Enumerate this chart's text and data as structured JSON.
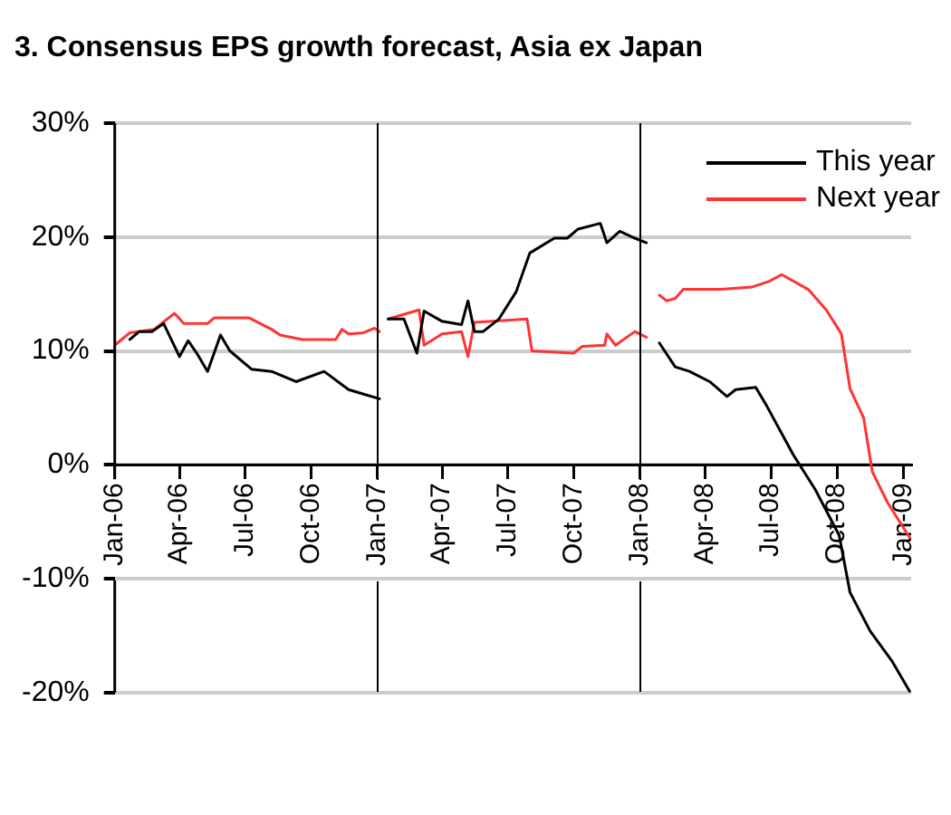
{
  "chart_data": {
    "type": "line",
    "title": "3. Consensus EPS growth forecast, Asia ex Japan",
    "series": [
      {
        "name": "This year",
        "color": "#000000",
        "x": [
          "2006-01-22",
          "2006-02-04",
          "2006-02-22",
          "2006-03-10",
          "2006-04-01",
          "2006-04-13",
          "2006-04-25",
          "2006-05-10",
          "2006-05-28",
          "2006-06-10",
          "2006-07-10",
          "2006-08-07",
          "2006-09-10",
          "2006-10-19",
          "2006-11-22",
          "2006-12-13",
          "2007-01-04",
          "2007-01-10",
          "2007-01-16",
          "2007-02-07",
          "2007-02-25",
          "2007-03-07",
          "2007-04-01",
          "2007-04-28",
          "2007-05-07",
          "2007-05-16",
          "2007-05-28",
          "2007-06-19",
          "2007-07-13",
          "2007-08-01",
          "2007-09-04",
          "2007-09-22",
          "2007-10-07",
          "2007-11-07",
          "2007-11-16",
          "2007-12-04",
          "2007-12-25",
          "2008-01-10",
          "2008-01-20",
          "2008-01-28",
          "2008-02-19",
          "2008-03-10",
          "2008-04-07",
          "2008-05-01",
          "2008-05-13",
          "2008-06-10",
          "2008-06-25",
          "2008-08-01",
          "2008-09-01",
          "2008-10-04",
          "2008-10-19",
          "2008-11-16",
          "2008-12-16",
          "2009-01-10"
        ],
        "values": [
          11.0,
          11.7,
          11.7,
          12.4,
          9.5,
          10.9,
          9.8,
          8.2,
          11.4,
          10.0,
          8.4,
          8.2,
          7.3,
          8.2,
          6.6,
          6.2,
          5.8,
          null,
          12.8,
          12.8,
          9.8,
          13.5,
          12.6,
          12.3,
          14.4,
          11.7,
          11.7,
          12.8,
          15.2,
          18.6,
          19.9,
          19.9,
          20.7,
          21.2,
          19.5,
          20.5,
          19.9,
          19.5,
          null,
          10.7,
          8.6,
          8.2,
          7.3,
          6.0,
          6.6,
          6.8,
          5.2,
          0.9,
          -2.2,
          -6.2,
          -11.2,
          -14.6,
          -17.2,
          -19.9
        ]
      },
      {
        "name": "Next year",
        "color": "#ff3333",
        "x": [
          "2006-01-01",
          "2006-01-22",
          "2006-02-25",
          "2006-03-25",
          "2006-04-07",
          "2006-05-10",
          "2006-05-19",
          "2006-07-07",
          "2006-08-07",
          "2006-08-19",
          "2006-09-19",
          "2006-11-04",
          "2006-11-13",
          "2006-11-22",
          "2006-12-13",
          "2006-12-28",
          "2007-01-04",
          "2007-01-10",
          "2007-01-16",
          "2007-02-28",
          "2007-03-07",
          "2007-04-01",
          "2007-04-28",
          "2007-05-07",
          "2007-05-16",
          "2007-07-28",
          "2007-08-04",
          "2007-10-01",
          "2007-10-13",
          "2007-11-13",
          "2007-11-16",
          "2007-11-28",
          "2007-12-25",
          "2008-01-10",
          "2008-01-20",
          "2008-01-28",
          "2008-02-07",
          "2008-02-19",
          "2008-03-01",
          "2008-04-22",
          "2008-06-04",
          "2008-06-28",
          "2008-07-16",
          "2008-08-22",
          "2008-09-16",
          "2008-10-07",
          "2008-10-19",
          "2008-11-07",
          "2008-11-19",
          "2008-12-10",
          "2009-01-10"
        ],
        "values": [
          10.5,
          11.6,
          11.9,
          13.3,
          12.4,
          12.4,
          12.9,
          12.9,
          11.9,
          11.4,
          11.0,
          11.0,
          11.9,
          11.5,
          11.6,
          12.0,
          11.7,
          null,
          12.8,
          13.6,
          10.5,
          11.5,
          11.7,
          9.5,
          12.5,
          12.8,
          10.0,
          9.8,
          10.4,
          10.5,
          11.5,
          10.5,
          11.7,
          11.2,
          null,
          14.9,
          14.4,
          14.6,
          15.4,
          15.4,
          15.6,
          16.1,
          16.7,
          15.4,
          13.6,
          11.5,
          6.7,
          4.1,
          -0.6,
          -3.3,
          -6.4
        ]
      }
    ],
    "xlim": [
      "2006-01-01",
      "2009-01-12"
    ],
    "xticks": [
      {
        "value": "2006-01-01",
        "label": "Jan-06"
      },
      {
        "value": "2006-04-01",
        "label": "Apr-06"
      },
      {
        "value": "2006-07-01",
        "label": "Jul-06"
      },
      {
        "value": "2006-10-01",
        "label": "Oct-06"
      },
      {
        "value": "2007-01-01",
        "label": "Jan-07"
      },
      {
        "value": "2007-04-01",
        "label": "Apr-07"
      },
      {
        "value": "2007-07-01",
        "label": "Jul-07"
      },
      {
        "value": "2007-10-01",
        "label": "Oct-07"
      },
      {
        "value": "2008-01-01",
        "label": "Jan-08"
      },
      {
        "value": "2008-04-01",
        "label": "Apr-08"
      },
      {
        "value": "2008-07-01",
        "label": "Jul-08"
      },
      {
        "value": "2008-10-01",
        "label": "Oct-08"
      },
      {
        "value": "2009-01-01",
        "label": "Jan-09"
      }
    ],
    "ref_lines": [
      {
        "axis": "x",
        "value": "2007-01-01",
        "color": "#000000"
      },
      {
        "axis": "x",
        "value": "2008-01-01",
        "color": "#000000"
      }
    ],
    "ylim": [
      -20,
      30
    ],
    "yticks": [
      {
        "value": -20,
        "label": "-20%"
      },
      {
        "value": -10,
        "label": "-10%"
      },
      {
        "value": 0,
        "label": "0%"
      },
      {
        "value": 10,
        "label": "10%"
      },
      {
        "value": 20,
        "label": "20%"
      },
      {
        "value": 30,
        "label": "30%"
      }
    ],
    "grid": "y",
    "legend": "top right",
    "marker": "none",
    "line_style": "solid"
  }
}
